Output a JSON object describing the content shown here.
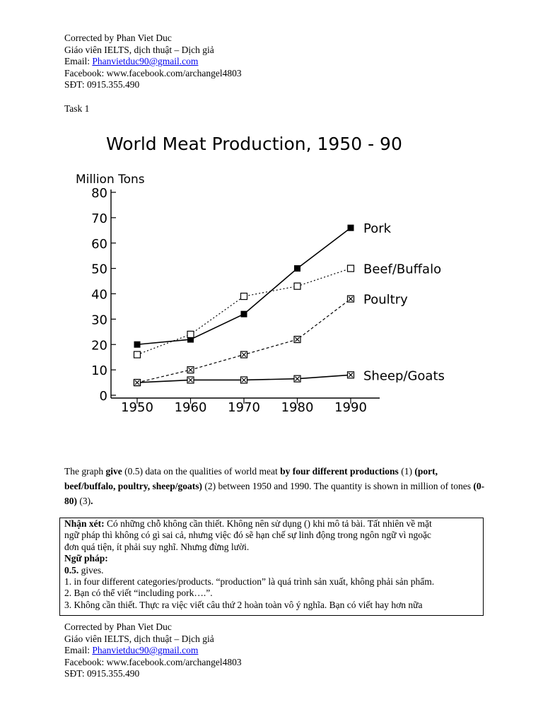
{
  "header": {
    "corrected_by": "Corrected by Phan Viet Duc",
    "role": "Giáo viên IELTS, dịch thuật – Dịch giả",
    "email_label": "Email: ",
    "email": "Phanvietduc90@gmail.com",
    "facebook": "Facebook: www.facebook.com/archangel4803",
    "phone": "SĐT: 0915.355.490"
  },
  "task_label": "Task 1",
  "chart_data": {
    "type": "line",
    "title": "World Meat Production, 1950 - 90",
    "ylabel": "Million Tons",
    "xlabel": "",
    "x": [
      1950,
      1960,
      1970,
      1980,
      1990
    ],
    "xticks": [
      "1950",
      "1960",
      "1970",
      "1980",
      "1990"
    ],
    "yticks": [
      "0",
      "10",
      "20",
      "30",
      "40",
      "50",
      "60",
      "70",
      "80"
    ],
    "ylim": [
      0,
      80
    ],
    "legend_placement": "right (labels at line ends)",
    "series": [
      {
        "name": "Pork",
        "values": [
          20,
          22,
          32,
          50,
          66
        ],
        "style": "solid",
        "marker": "filled-square"
      },
      {
        "name": "Beef/Buffalo",
        "values": [
          16,
          24,
          39,
          43,
          50
        ],
        "style": "dotted",
        "marker": "open-square"
      },
      {
        "name": "Poultry",
        "values": [
          5,
          10,
          16,
          22,
          38
        ],
        "style": "dashed",
        "marker": "crossed-square"
      },
      {
        "name": "Sheep/Goats",
        "values": [
          5,
          6,
          6,
          6.5,
          8
        ],
        "style": "solid",
        "marker": "crossed-square"
      }
    ]
  },
  "paragraph": {
    "p1": "The graph ",
    "b1": "give",
    "p2": " (0.5) data on the qualities of world meat ",
    "b2": "by four different productions",
    "p3": " (1) ",
    "b3": "(port, beef/buffalo, poultry, sheep/goats)",
    "p4": " (2) between 1950 and 1990. The quantity is shown in million of tones ",
    "b4": "(0-80)",
    "p5": " (3)",
    "b5": "."
  },
  "comment": {
    "label": "Nhận xét:",
    "text": " Có những chỗ không cần thiết. Không nên sử dụng () khi mô tả bài. Tất nhiên về mặt",
    "line2": "ngữ pháp thì không có gì sai cả, nhưng việc đó sẽ hạn chế sự linh động trong ngôn ngữ vì ngoặc",
    "line3": "đơn quá tiện, ít phải suy nghĩ. Nhưng đừng lười.",
    "grammar_label": "Ngữ pháp:",
    "item0_label": "0.5.",
    "item0_text": " gives.",
    "item1": "1. in four different categories/products. “production” là quá trình sản xuất, không phải sản phẩm.",
    "item2": "2. Bạn có thể viết “including pork….”.",
    "item3": "3. Không cần thiết. Thực ra việc viết câu thứ 2 hoàn toàn vô ý nghĩa. Bạn có viết hay hơn nữa"
  }
}
